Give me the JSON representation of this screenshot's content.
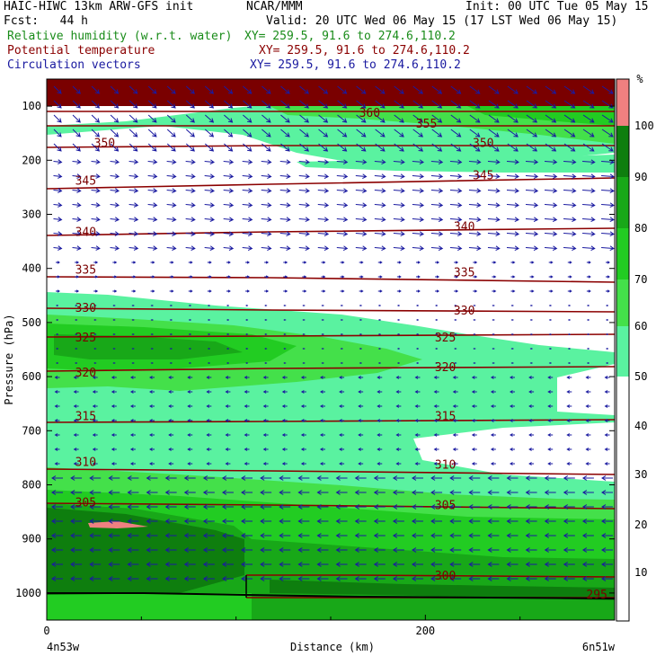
{
  "header": {
    "model_line": "HAIC-HIWC 13km ARW-GFS init",
    "org": "NCAR/MMM",
    "init_line": "Init: 00 UTC Tue 05 May 15",
    "fcst": "Fcst:   44 h",
    "valid_line": "Valid: 20 UTC Wed 06 May 15 (17 LST Wed 06 May 15)",
    "field1": "Relative humidity (w.r.t. water)",
    "field2": "Potential temperature",
    "field3": "Circulation vectors",
    "xy1": "XY= 259.5, 91.6 to 274.6,110.2",
    "xy2": "XY= 259.5, 91.6 to 274.6,110.2",
    "xy3": "XY= 259.5, 91.6 to 274.6,110.2"
  },
  "colors": {
    "rh_50_60": "#5af2a0",
    "rh_60_70": "#44e04a",
    "rh_70_80": "#22cc22",
    "rh_80_90": "#18a818",
    "rh_90_100": "#0e7e0e",
    "rh_100_plus": "#f08080",
    "theta": "#8b0000",
    "vectors": "#1a1aa0",
    "terrain": "#000000"
  },
  "chart_data": {
    "type": "heatmap",
    "title": "Relative humidity (w.r.t. water)",
    "xlabel": "Distance (km)",
    "ylabel": "Pressure (hPa)",
    "x_range": [
      0,
      300
    ],
    "y_range": [
      50,
      1050
    ],
    "x_ticks": [
      "0",
      "200"
    ],
    "y_ticks": [
      "100",
      "200",
      "300",
      "400",
      "500",
      "600",
      "700",
      "800",
      "900",
      "1000"
    ],
    "y_tick_values": [
      100,
      200,
      300,
      400,
      500,
      600,
      700,
      800,
      900,
      1000
    ],
    "x_tick_values": [
      0,
      200
    ],
    "left_label": "4n53w",
    "right_label": "6n51w",
    "colorbar": {
      "unit": "%",
      "levels": [
        "10",
        "20",
        "30",
        "40",
        "50",
        "60",
        "70",
        "80",
        "90",
        "100"
      ],
      "level_values": [
        10,
        20,
        30,
        40,
        50,
        60,
        70,
        80,
        90,
        100
      ]
    },
    "theta_contours": [
      {
        "label": "360",
        "x": 165,
        "p": 120
      },
      {
        "label": "355",
        "x": 195,
        "p": 140
      },
      {
        "label": "350",
        "x": 25,
        "p": 175
      },
      {
        "label": "350",
        "x": 225,
        "p": 175
      },
      {
        "label": "345",
        "x": 15,
        "p": 245
      },
      {
        "label": "345",
        "x": 225,
        "p": 235
      },
      {
        "label": "340",
        "x": 15,
        "p": 340
      },
      {
        "label": "340",
        "x": 215,
        "p": 330
      },
      {
        "label": "335",
        "x": 15,
        "p": 410
      },
      {
        "label": "335",
        "x": 215,
        "p": 415
      },
      {
        "label": "330",
        "x": 15,
        "p": 480
      },
      {
        "label": "330",
        "x": 215,
        "p": 485
      },
      {
        "label": "325",
        "x": 15,
        "p": 535
      },
      {
        "label": "325",
        "x": 205,
        "p": 535
      },
      {
        "label": "320",
        "x": 15,
        "p": 600
      },
      {
        "label": "320",
        "x": 205,
        "p": 590
      },
      {
        "label": "315",
        "x": 15,
        "p": 680
      },
      {
        "label": "315",
        "x": 205,
        "p": 680
      },
      {
        "label": "310",
        "x": 15,
        "p": 765
      },
      {
        "label": "310",
        "x": 205,
        "p": 770
      },
      {
        "label": "305",
        "x": 15,
        "p": 840
      },
      {
        "label": "305",
        "x": 205,
        "p": 845
      },
      {
        "label": "300",
        "x": 205,
        "p": 975
      },
      {
        "label": "295",
        "x": 285,
        "p": 1010
      }
    ]
  }
}
